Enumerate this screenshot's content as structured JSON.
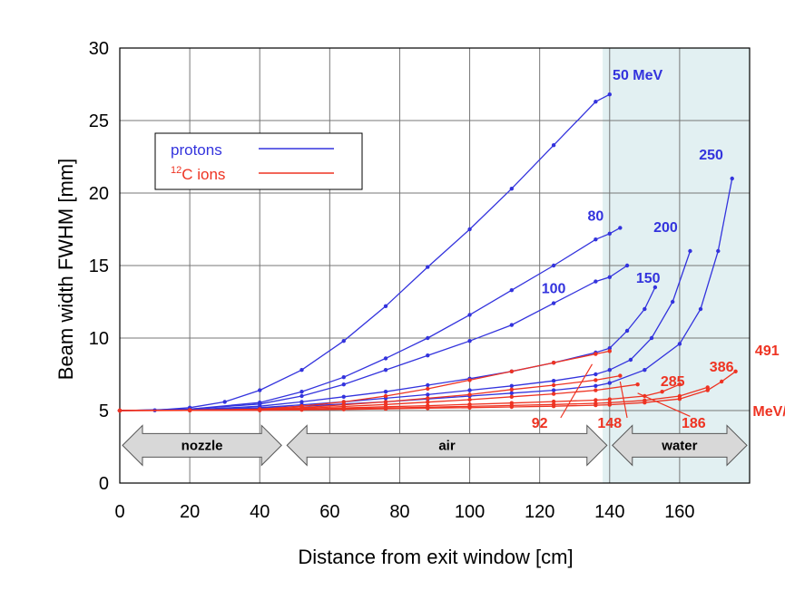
{
  "chart_data": {
    "type": "line",
    "xlabel": "Distance from exit window  [cm]",
    "ylabel": "Beam width FWHM   [mm]",
    "xlim": [
      0,
      180
    ],
    "ylim": [
      0,
      30
    ],
    "x_ticks": [
      "0",
      "20",
      "40",
      "60",
      "80",
      "100",
      "120",
      "140",
      "160"
    ],
    "y_ticks": [
      "0",
      "5",
      "10",
      "15",
      "20",
      "25",
      "30"
    ],
    "grid": true,
    "legend_position": "top-left",
    "legend": {
      "protons": {
        "label": "protons",
        "color": "#3333dd"
      },
      "carbon": {
        "sup": "12",
        "label": "C ions",
        "color": "#ee3322"
      }
    },
    "regions": [
      {
        "label": "nozzle",
        "x_range": [
          0,
          47
        ]
      },
      {
        "label": "air",
        "x_range": [
          47,
          140
        ]
      },
      {
        "label": "water",
        "x_range": [
          140,
          180
        ]
      }
    ],
    "water_shading": {
      "x_range": [
        138,
        180
      ],
      "color": "#e2f0f2"
    },
    "series": [
      {
        "group": "protons",
        "label": "50 MeV",
        "label_x": 148,
        "label_y": 27.8,
        "x_end": 141,
        "points": [
          [
            0,
            5.0
          ],
          [
            10,
            5.02
          ],
          [
            20,
            5.2
          ],
          [
            30,
            5.6
          ],
          [
            40,
            6.4
          ],
          [
            52,
            7.8
          ],
          [
            64,
            9.8
          ],
          [
            76,
            12.2
          ],
          [
            88,
            14.9
          ],
          [
            100,
            17.5
          ],
          [
            112,
            20.3
          ],
          [
            124,
            23.3
          ],
          [
            136,
            26.3
          ],
          [
            140,
            26.8
          ]
        ]
      },
      {
        "group": "protons",
        "label": "80",
        "label_x": 136,
        "label_y": 18.1,
        "x_end": 143,
        "points": [
          [
            0,
            5.0
          ],
          [
            20,
            5.1
          ],
          [
            40,
            5.55
          ],
          [
            52,
            6.3
          ],
          [
            64,
            7.3
          ],
          [
            76,
            8.6
          ],
          [
            88,
            10.0
          ],
          [
            100,
            11.6
          ],
          [
            112,
            13.3
          ],
          [
            124,
            15.0
          ],
          [
            136,
            16.8
          ],
          [
            140,
            17.2
          ],
          [
            143,
            17.6
          ]
        ]
      },
      {
        "group": "protons",
        "label": "100",
        "label_x": 124,
        "label_y": 13.1,
        "x_end": 145,
        "points": [
          [
            0,
            5.0
          ],
          [
            20,
            5.1
          ],
          [
            40,
            5.45
          ],
          [
            52,
            6.0
          ],
          [
            64,
            6.8
          ],
          [
            76,
            7.8
          ],
          [
            88,
            8.8
          ],
          [
            100,
            9.8
          ],
          [
            112,
            10.9
          ],
          [
            124,
            12.4
          ],
          [
            136,
            13.9
          ],
          [
            140,
            14.2
          ],
          [
            145,
            15.0
          ]
        ]
      },
      {
        "group": "protons",
        "label": "150",
        "label_x": 151,
        "label_y": 13.8,
        "x_end": 153,
        "points": [
          [
            0,
            5.0
          ],
          [
            20,
            5.05
          ],
          [
            40,
            5.3
          ],
          [
            52,
            5.6
          ],
          [
            64,
            5.95
          ],
          [
            76,
            6.3
          ],
          [
            88,
            6.75
          ],
          [
            100,
            7.2
          ],
          [
            112,
            7.7
          ],
          [
            124,
            8.3
          ],
          [
            136,
            9.0
          ],
          [
            140,
            9.3
          ],
          [
            145,
            10.5
          ],
          [
            150,
            12.0
          ],
          [
            153,
            13.5
          ]
        ]
      },
      {
        "group": "protons",
        "label": "200",
        "label_x": 156,
        "label_y": 17.3,
        "x_end": 163,
        "points": [
          [
            0,
            5.0
          ],
          [
            20,
            5.05
          ],
          [
            40,
            5.2
          ],
          [
            52,
            5.4
          ],
          [
            64,
            5.6
          ],
          [
            76,
            5.85
          ],
          [
            88,
            6.1
          ],
          [
            100,
            6.4
          ],
          [
            112,
            6.7
          ],
          [
            124,
            7.05
          ],
          [
            136,
            7.5
          ],
          [
            140,
            7.8
          ],
          [
            146,
            8.5
          ],
          [
            152,
            10.0
          ],
          [
            158,
            12.5
          ],
          [
            163,
            16.0
          ]
        ]
      },
      {
        "group": "protons",
        "label": "250",
        "label_x": 169,
        "label_y": 22.3,
        "x_end": 175,
        "points": [
          [
            0,
            5.0
          ],
          [
            20,
            5.03
          ],
          [
            40,
            5.15
          ],
          [
            52,
            5.3
          ],
          [
            64,
            5.45
          ],
          [
            76,
            5.6
          ],
          [
            88,
            5.8
          ],
          [
            100,
            6.0
          ],
          [
            112,
            6.2
          ],
          [
            124,
            6.4
          ],
          [
            136,
            6.7
          ],
          [
            140,
            6.9
          ],
          [
            150,
            7.8
          ],
          [
            160,
            9.6
          ],
          [
            166,
            12.0
          ],
          [
            171,
            16.0
          ],
          [
            175,
            21.0
          ]
        ]
      },
      {
        "group": "carbon",
        "label": "92",
        "label_x": 120,
        "label_y": 3.8,
        "leader": [
          [
            126,
            4.5
          ],
          [
            135,
            8.2
          ]
        ],
        "x_end": 140,
        "points": [
          [
            0,
            5.0
          ],
          [
            20,
            5.03
          ],
          [
            40,
            5.1
          ],
          [
            52,
            5.3
          ],
          [
            64,
            5.6
          ],
          [
            76,
            6.0
          ],
          [
            88,
            6.5
          ],
          [
            100,
            7.1
          ],
          [
            112,
            7.7
          ],
          [
            124,
            8.3
          ],
          [
            136,
            8.9
          ],
          [
            140,
            9.1
          ]
        ]
      },
      {
        "group": "carbon",
        "label": "148",
        "label_x": 140,
        "label_y": 3.8,
        "leader": [
          [
            145,
            4.5
          ],
          [
            143,
            7.0
          ]
        ],
        "x_end": 143,
        "points": [
          [
            0,
            5.0
          ],
          [
            20,
            5.02
          ],
          [
            40,
            5.08
          ],
          [
            52,
            5.2
          ],
          [
            64,
            5.4
          ],
          [
            76,
            5.6
          ],
          [
            88,
            5.85
          ],
          [
            100,
            6.1
          ],
          [
            112,
            6.45
          ],
          [
            124,
            6.75
          ],
          [
            136,
            7.1
          ],
          [
            143,
            7.4
          ]
        ]
      },
      {
        "group": "carbon",
        "label": "186",
        "label_x": 164,
        "label_y": 3.8,
        "leader": [
          [
            163,
            4.6
          ],
          [
            148,
            6.2
          ]
        ],
        "x_end": 148,
        "points": [
          [
            0,
            5.0
          ],
          [
            20,
            5.02
          ],
          [
            40,
            5.06
          ],
          [
            52,
            5.15
          ],
          [
            64,
            5.28
          ],
          [
            76,
            5.42
          ],
          [
            88,
            5.58
          ],
          [
            100,
            5.75
          ],
          [
            112,
            5.95
          ],
          [
            124,
            6.15
          ],
          [
            136,
            6.4
          ],
          [
            148,
            6.8
          ]
        ]
      },
      {
        "group": "carbon",
        "label": "285",
        "label_x": 158,
        "label_y": 6.7,
        "x_end": 160,
        "points": [
          [
            0,
            5.0
          ],
          [
            20,
            5.01
          ],
          [
            40,
            5.04
          ],
          [
            52,
            5.1
          ],
          [
            64,
            5.18
          ],
          [
            76,
            5.26
          ],
          [
            88,
            5.34
          ],
          [
            100,
            5.43
          ],
          [
            112,
            5.52
          ],
          [
            124,
            5.62
          ],
          [
            136,
            5.72
          ],
          [
            140,
            5.78
          ],
          [
            150,
            6.0
          ],
          [
            155,
            6.3
          ],
          [
            160,
            6.8
          ]
        ]
      },
      {
        "group": "carbon",
        "label": "386",
        "label_x": 172,
        "label_y": 7.7,
        "x_end": 168,
        "points": [
          [
            0,
            5.0
          ],
          [
            20,
            5.01
          ],
          [
            40,
            5.03
          ],
          [
            52,
            5.07
          ],
          [
            64,
            5.12
          ],
          [
            76,
            5.17
          ],
          [
            88,
            5.23
          ],
          [
            100,
            5.29
          ],
          [
            112,
            5.35
          ],
          [
            124,
            5.42
          ],
          [
            136,
            5.5
          ],
          [
            140,
            5.54
          ],
          [
            150,
            5.7
          ],
          [
            160,
            6.0
          ],
          [
            168,
            6.6
          ]
        ]
      },
      {
        "group": "carbon",
        "label": "491",
        "label_x": 185,
        "label_y": 8.8,
        "x_end": 176,
        "points": [
          [
            0,
            5.0
          ],
          [
            20,
            5.01
          ],
          [
            40,
            5.02
          ],
          [
            52,
            5.05
          ],
          [
            64,
            5.08
          ],
          [
            76,
            5.12
          ],
          [
            88,
            5.16
          ],
          [
            100,
            5.2
          ],
          [
            112,
            5.25
          ],
          [
            124,
            5.3
          ],
          [
            136,
            5.37
          ],
          [
            140,
            5.4
          ],
          [
            150,
            5.55
          ],
          [
            160,
            5.8
          ],
          [
            168,
            6.4
          ],
          [
            172,
            7.0
          ],
          [
            176,
            7.7
          ]
        ]
      }
    ],
    "unit_label": {
      "text": "MeV/u",
      "x": 187,
      "y": 5.0,
      "group": "carbon"
    }
  }
}
